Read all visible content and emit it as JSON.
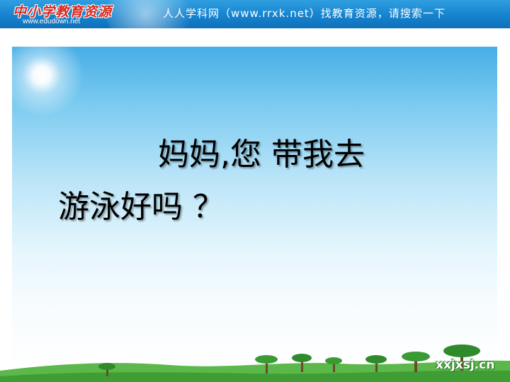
{
  "header": {
    "logo_script": "中小学教育资源",
    "logo_url": "www.edudown.net",
    "site_text": "人人学科网（www.rrxk.net）找教育资源，请搜索一下"
  },
  "slide": {
    "line1": "妈妈,您  带我去",
    "line2": "游泳好吗 ？"
  },
  "watermark": "xxjxsj.cn",
  "colors": {
    "banner": "#1683cf",
    "sky_top": "#46aee6",
    "grass": "#3ea13a"
  }
}
